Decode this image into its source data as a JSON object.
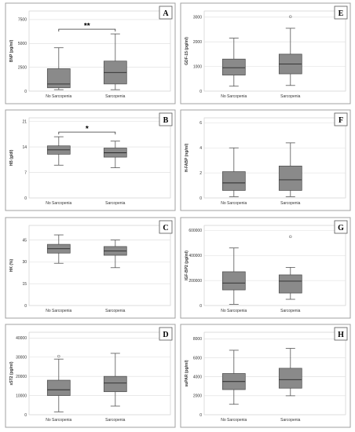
{
  "chart_data": [
    {
      "panel": "A",
      "type": "box",
      "ylabel": "BNP (pg/ml)",
      "yticks": [
        0,
        2500,
        5000,
        7500
      ],
      "ylim": [
        0,
        8400
      ],
      "grid": true,
      "categories": [
        "No Sarcopenia",
        "Sarcopenia"
      ],
      "boxes": [
        {
          "min": 150,
          "q1": 350,
          "median": 750,
          "q3": 2350,
          "max": 4550,
          "outliers": []
        },
        {
          "min": 150,
          "q1": 750,
          "median": 1950,
          "q3": 3150,
          "max": 6000,
          "outliers": []
        }
      ],
      "significance": "**"
    },
    {
      "panel": "E",
      "type": "box",
      "ylabel": "GDF-15 (pg/ml)",
      "yticks": [
        0,
        1000,
        2000,
        3000
      ],
      "ylim": [
        0,
        3250
      ],
      "grid": true,
      "categories": [
        "No Sarcopenia",
        "Sarcopenia"
      ],
      "boxes": [
        {
          "min": 200,
          "q1": 650,
          "median": 950,
          "q3": 1300,
          "max": 2150,
          "outliers": []
        },
        {
          "min": 230,
          "q1": 700,
          "median": 1100,
          "q3": 1500,
          "max": 2550,
          "outliers": [
            3020
          ]
        }
      ],
      "significance": ""
    },
    {
      "panel": "B",
      "type": "box",
      "ylabel": "HB (g/dl)",
      "yticks": [
        0,
        7,
        14,
        21
      ],
      "ylim": [
        0,
        22
      ],
      "grid": true,
      "categories": [
        "No Sarcopenia",
        "Sarcopenia"
      ],
      "boxes": [
        {
          "min": 9.0,
          "q1": 12.0,
          "median": 13.2,
          "q3": 14.3,
          "max": 16.8,
          "outliers": []
        },
        {
          "min": 8.3,
          "q1": 11.2,
          "median": 12.4,
          "q3": 13.7,
          "max": 15.6,
          "outliers": []
        }
      ],
      "significance": "*"
    },
    {
      "panel": "F",
      "type": "box",
      "ylabel": "H-FABP (ng/ml)",
      "yticks": [
        0,
        2,
        4,
        6
      ],
      "ylim": [
        0,
        6.4
      ],
      "grid": true,
      "categories": [
        "No Sarcopenia",
        "Sarcopenia"
      ],
      "boxes": [
        {
          "min": 0.1,
          "q1": 0.6,
          "median": 1.2,
          "q3": 2.1,
          "max": 4.0,
          "outliers": []
        },
        {
          "min": 0.1,
          "q1": 0.6,
          "median": 1.45,
          "q3": 2.55,
          "max": 4.4,
          "outliers": []
        }
      ],
      "significance": ""
    },
    {
      "panel": "C",
      "type": "box",
      "ylabel": "HK (%)",
      "yticks": [
        0,
        15,
        30,
        45
      ],
      "ylim": [
        0,
        55
      ],
      "grid": true,
      "categories": [
        "No Sarcopenia",
        "Sarcopenia"
      ],
      "boxes": [
        {
          "min": 29,
          "q1": 36,
          "median": 39,
          "q3": 42,
          "max": 48.5,
          "outliers": []
        },
        {
          "min": 26,
          "q1": 34.5,
          "median": 37.5,
          "q3": 40.5,
          "max": 45,
          "outliers": []
        }
      ],
      "significance": ""
    },
    {
      "panel": "G",
      "type": "box",
      "ylabel": "IGF-BP2 (pg/ml)",
      "yticks": [
        0,
        200000,
        400000,
        600000
      ],
      "ylim": [
        0,
        640000
      ],
      "grid": true,
      "categories": [
        "No Sarcopenia",
        "Sarcopenia"
      ],
      "boxes": [
        {
          "min": 10000,
          "q1": 125000,
          "median": 180000,
          "q3": 270000,
          "max": 460000,
          "outliers": []
        },
        {
          "min": 50000,
          "q1": 100000,
          "median": 195000,
          "q3": 245000,
          "max": 305000,
          "outliers": [
            550000
          ]
        }
      ],
      "significance": ""
    },
    {
      "panel": "D",
      "type": "box",
      "ylabel": "sST2 (pg/ml)",
      "yticks": [
        0,
        10000,
        20000,
        30000,
        40000
      ],
      "ylim": [
        0,
        43000
      ],
      "grid": true,
      "categories": [
        "No Sarcopenia",
        "Sarcopenia"
      ],
      "boxes": [
        {
          "min": 1500,
          "q1": 10000,
          "median": 13000,
          "q3": 18000,
          "max": 29000,
          "outliers": [
            30500
          ]
        },
        {
          "min": 4500,
          "q1": 12000,
          "median": 16500,
          "q3": 20000,
          "max": 32000,
          "outliers": []
        }
      ],
      "significance": ""
    },
    {
      "panel": "H",
      "type": "box",
      "ylabel": "suPAR (pg/ml)",
      "yticks": [
        0,
        2000,
        4000,
        6000,
        8000
      ],
      "ylim": [
        0,
        8700
      ],
      "grid": true,
      "categories": [
        "No Sarcopenia",
        "Sarcopenia"
      ],
      "boxes": [
        {
          "min": 1100,
          "q1": 2650,
          "median": 3500,
          "q3": 4350,
          "max": 6800,
          "outliers": []
        },
        {
          "min": 2000,
          "q1": 2800,
          "median": 3700,
          "q3": 4900,
          "max": 7000,
          "outliers": []
        }
      ],
      "significance": ""
    }
  ],
  "colors": {
    "box_fill": "#8a8a8a",
    "box_stroke": "#4a4a4a",
    "whisker": "#555555",
    "grid": "#dcdcdc",
    "frame": "#a0a0a0",
    "outlier": "#777777"
  }
}
